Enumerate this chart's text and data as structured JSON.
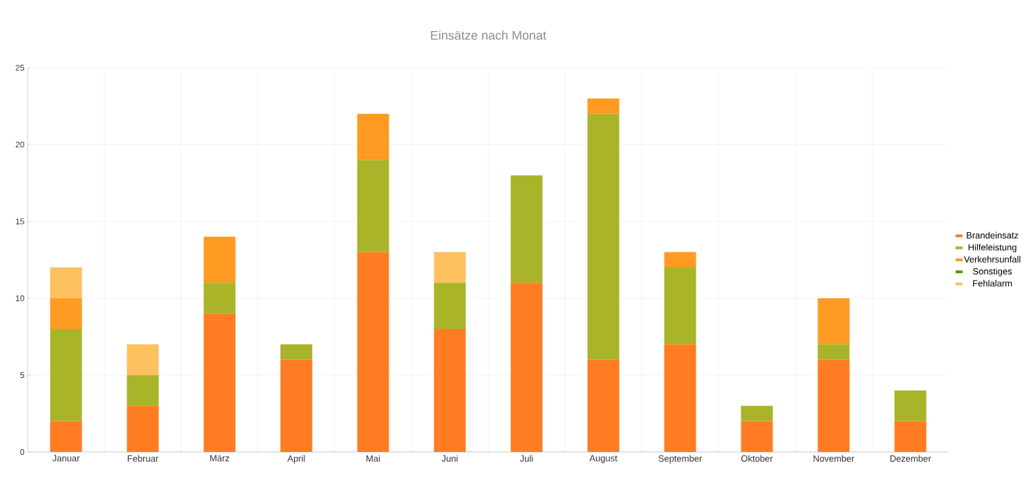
{
  "chart_data": {
    "type": "bar",
    "title": "Einsätze nach Monat",
    "stacked": true,
    "categories": [
      "Januar",
      "Februar",
      "März",
      "April",
      "Mai",
      "Juni",
      "Juli",
      "August",
      "September",
      "Oktober",
      "November",
      "Dezember"
    ],
    "series": [
      {
        "name": "Brandeinsatz",
        "color": "#ff7c22",
        "values": [
          2,
          3,
          9,
          6,
          13,
          8,
          11,
          6,
          7,
          2,
          6,
          2
        ]
      },
      {
        "name": "Hilfeleistung",
        "color": "#a9b428",
        "values": [
          6,
          2,
          2,
          1,
          6,
          3,
          7,
          16,
          5,
          1,
          1,
          2
        ]
      },
      {
        "name": "Verkehrsunfall",
        "color": "#ff9a22",
        "values": [
          2,
          0,
          3,
          0,
          3,
          0,
          0,
          1,
          1,
          0,
          3,
          0
        ]
      },
      {
        "name": "Sonstiges",
        "color": "#5f8c00",
        "values": [
          0,
          0,
          0,
          0,
          0,
          0,
          0,
          0,
          0,
          0,
          0,
          0
        ]
      },
      {
        "name": "Fehlalarm",
        "color": "#ffc060",
        "values": [
          2,
          2,
          0,
          0,
          0,
          2,
          0,
          0,
          0,
          0,
          0,
          0
        ]
      }
    ],
    "ylim": [
      0,
      25
    ],
    "yticks": [
      0,
      5,
      10,
      15,
      20,
      25
    ],
    "grid": true,
    "legend": "right"
  }
}
